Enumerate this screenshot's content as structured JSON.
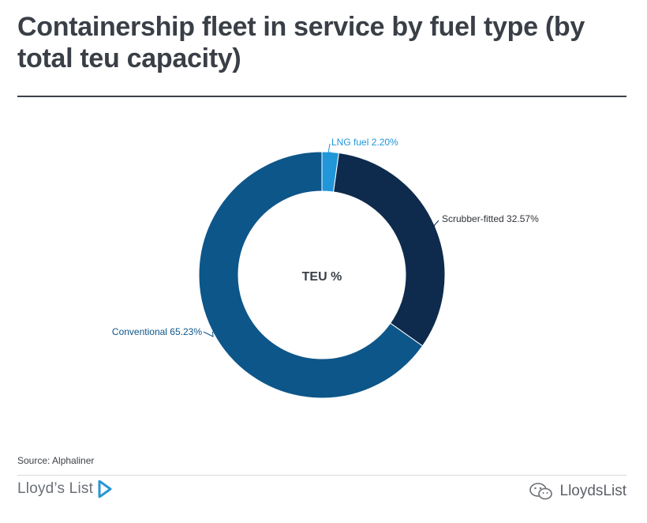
{
  "header": {
    "title": "Containership fleet in service by fuel type (by total teu capacity)"
  },
  "chart_data": {
    "type": "pie",
    "donut": true,
    "center_label": "TEU %",
    "slices": [
      {
        "label": "LNG fuel 2.20%",
        "value": 2.2,
        "color": "#2196d9"
      },
      {
        "label": "Scrubber-fitted 32.57%",
        "value": 32.57,
        "color": "#0e2b4d"
      },
      {
        "label": "Conventional 65.23%",
        "value": 65.23,
        "color": "#0d5689"
      }
    ]
  },
  "footer": {
    "source": "Source: Alphaliner",
    "brand": "Lloyd’s List",
    "watermark": "LloydsList",
    "brand_icon": "play-chevron-icon",
    "watermark_icon": "wechat-icon",
    "brand_icon_color": "#2a95d5"
  }
}
